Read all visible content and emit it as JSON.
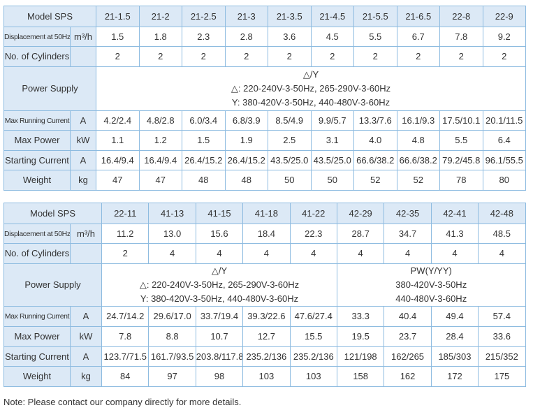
{
  "table1": {
    "header": [
      "Model SPS",
      "21-1.5",
      "21-2",
      "21-2.5",
      "21-3",
      "21-3.5",
      "21-4.5",
      "21-5.5",
      "21-6.5",
      "22-8",
      "22-9"
    ],
    "rows": [
      {
        "label": "Displacement at 50Hz",
        "unit": "m³/h",
        "values": [
          "1.5",
          "1.8",
          "2.3",
          "2.8",
          "3.6",
          "4.5",
          "5.5",
          "6.7",
          "7.8",
          "9.2"
        ]
      },
      {
        "label": "No. of Cylinders",
        "values": [
          "2",
          "2",
          "2",
          "2",
          "2",
          "2",
          "2",
          "2",
          "2",
          "2"
        ]
      },
      {
        "label": "Power Supply",
        "groups": [
          [
            "△/Y",
            "△: 220-240V-3-50Hz, 265-290V-3-60Hz",
            "Y: 380-420V-3-50Hz, 440-480V-3-60Hz"
          ]
        ]
      },
      {
        "label": "Max Running Current",
        "unit": "A",
        "values": [
          "4.2/2.4",
          "4.8/2.8",
          "6.0/3.4",
          "6.8/3.9",
          "8.5/4.9",
          "9.9/5.7",
          "13.3/7.6",
          "16.1/9.3",
          "17.5/10.1",
          "20.1/11.5"
        ]
      },
      {
        "label": "Max Power",
        "unit": "kW",
        "values": [
          "1.1",
          "1.2",
          "1.5",
          "1.9",
          "2.5",
          "3.1",
          "4.0",
          "4.8",
          "5.5",
          "6.4"
        ]
      },
      {
        "label": "Starting Current",
        "unit": "A",
        "values": [
          "16.4/9.4",
          "16.4/9.4",
          "26.4/15.2",
          "26.4/15.2",
          "43.5/25.0",
          "43.5/25.0",
          "66.6/38.2",
          "66.6/38.2",
          "79.2/45.8",
          "96.1/55.5"
        ]
      },
      {
        "label": "Weight",
        "unit": "kg",
        "values": [
          "47",
          "47",
          "48",
          "48",
          "50",
          "50",
          "52",
          "52",
          "78",
          "80"
        ]
      }
    ]
  },
  "table2": {
    "header": [
      "Model SPS",
      "22-11",
      "41-13",
      "41-15",
      "41-18",
      "41-22",
      "42-29",
      "42-35",
      "42-41",
      "42-48"
    ],
    "rows": [
      {
        "label": "Displacement at 50Hz",
        "unit": "m³/h",
        "values": [
          "11.2",
          "13.0",
          "15.6",
          "18.4",
          "22.3",
          "28.7",
          "34.7",
          "41.3",
          "48.5"
        ]
      },
      {
        "label": "No. of Cylinders",
        "values": [
          "2",
          "4",
          "4",
          "4",
          "4",
          "4",
          "4",
          "4",
          "4"
        ]
      },
      {
        "label": "Power Supply",
        "groups": [
          [
            "△/Y",
            "△: 220-240V-3-50Hz, 265-290V-3-60Hz",
            "Y: 380-420V-3-50Hz, 440-480V-3-60Hz"
          ],
          [
            "PW(Y/YY)",
            "380-420V-3-50Hz",
            "440-480V-3-60Hz"
          ]
        ]
      },
      {
        "label": "Max Running Current",
        "unit": "A",
        "values": [
          "24.7/14.2",
          "29.6/17.0",
          "33.7/19.4",
          "39.3/22.6",
          "47.6/27.4",
          "33.3",
          "40.4",
          "49.4",
          "57.4"
        ]
      },
      {
        "label": "Max Power",
        "unit": "kW",
        "values": [
          "7.8",
          "8.8",
          "10.7",
          "12.7",
          "15.5",
          "19.5",
          "23.7",
          "28.4",
          "33.6"
        ]
      },
      {
        "label": "Starting Current",
        "unit": "A",
        "values": [
          "123.7/71.5",
          "161.7/93.5",
          "203.8/117.8",
          "235.2/136",
          "235.2/136",
          "121/198",
          "162/265",
          "185/303",
          "215/352"
        ]
      },
      {
        "label": "Weight",
        "unit": "kg",
        "values": [
          "84",
          "97",
          "98",
          "103",
          "103",
          "158",
          "162",
          "172",
          "175"
        ]
      }
    ]
  },
  "note": "Note: Please contact our company directly for more details."
}
